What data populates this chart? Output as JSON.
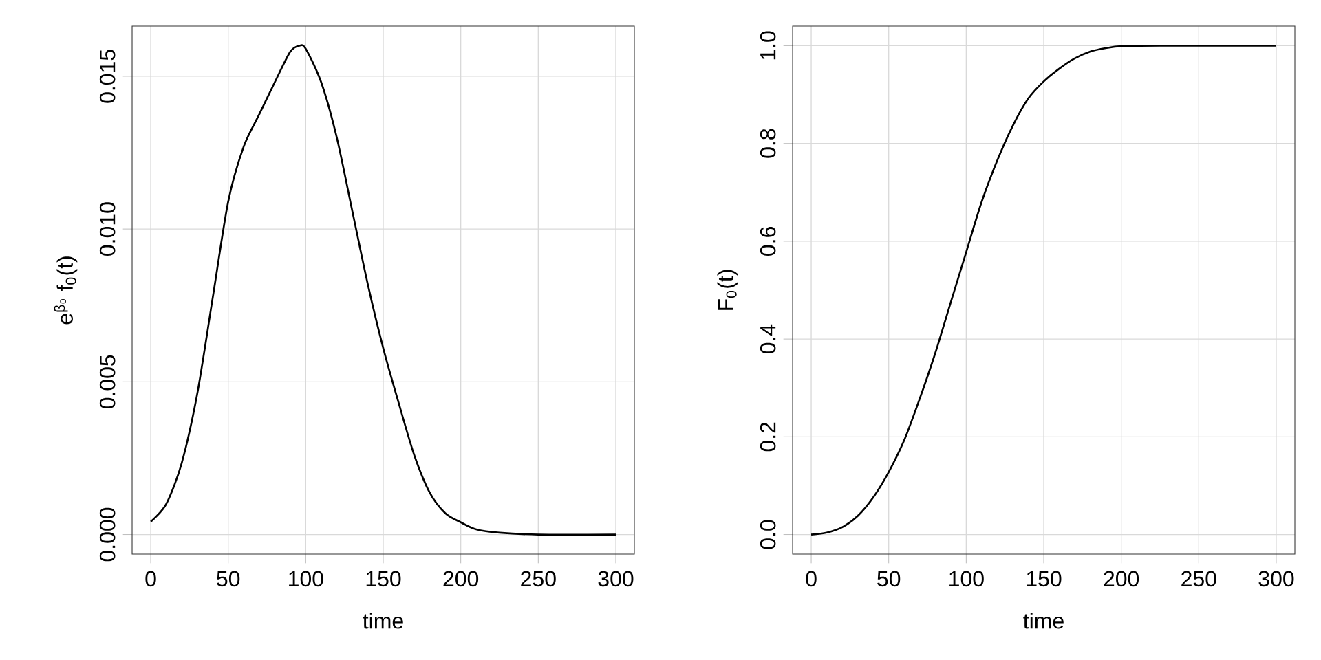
{
  "chart_data": [
    {
      "type": "line",
      "xlabel": "time",
      "ylabel": "e$^{β₀}$ f$_{0}$(t)",
      "grid": true,
      "xlim": [
        -12,
        312
      ],
      "ylim": [
        -0.00064,
        0.01664
      ],
      "xticks": [
        0,
        50,
        100,
        150,
        200,
        250,
        300
      ],
      "yticks": [
        {
          "value": 0,
          "label": "0.000"
        },
        {
          "value": 0.005,
          "label": "0.005"
        },
        {
          "value": 0.01,
          "label": "0.010"
        },
        {
          "value": 0.015,
          "label": "0.015"
        }
      ],
      "x": [
        0,
        10,
        20,
        30,
        40,
        50,
        60,
        70,
        80,
        90,
        96,
        100,
        110,
        120,
        130,
        140,
        150,
        160,
        170,
        180,
        190,
        200,
        210,
        225,
        250,
        300
      ],
      "series": [
        {
          "color": "#000000",
          "values": [
            0.00042,
            0.001,
            0.00234,
            0.0046,
            0.00775,
            0.0109,
            0.0127,
            0.01375,
            0.0148,
            0.0158,
            0.016,
            0.0159,
            0.0148,
            0.013,
            0.0106,
            0.0082,
            0.0061,
            0.0043,
            0.0026,
            0.00137,
            0.0007,
            0.0004,
            0.00017,
            6e-05,
            0,
            0
          ]
        }
      ]
    },
    {
      "type": "line",
      "xlabel": "time",
      "ylabel": "F$_{0}$(t)",
      "grid": true,
      "xlim": [
        -12,
        312
      ],
      "ylim": [
        -0.04,
        1.04
      ],
      "xticks": [
        0,
        50,
        100,
        150,
        200,
        250,
        300
      ],
      "yticks": [
        {
          "value": 0,
          "label": "0.0"
        },
        {
          "value": 0.2,
          "label": "0.2"
        },
        {
          "value": 0.4,
          "label": "0.4"
        },
        {
          "value": 0.6,
          "label": "0.6"
        },
        {
          "value": 0.8,
          "label": "0.8"
        },
        {
          "value": 1,
          "label": "1.0"
        }
      ],
      "x": [
        0,
        10,
        20,
        30,
        40,
        50,
        60,
        70,
        80,
        90,
        100,
        110,
        120,
        130,
        140,
        150,
        160,
        170,
        180,
        190,
        200,
        225,
        300
      ],
      "series": [
        {
          "color": "#000000",
          "values": [
            0,
            0.004,
            0.015,
            0.038,
            0.076,
            0.128,
            0.193,
            0.278,
            0.371,
            0.475,
            0.578,
            0.681,
            0.765,
            0.836,
            0.892,
            0.927,
            0.953,
            0.974,
            0.988,
            0.995,
            0.999,
            1.0,
            1.0
          ]
        }
      ]
    }
  ]
}
